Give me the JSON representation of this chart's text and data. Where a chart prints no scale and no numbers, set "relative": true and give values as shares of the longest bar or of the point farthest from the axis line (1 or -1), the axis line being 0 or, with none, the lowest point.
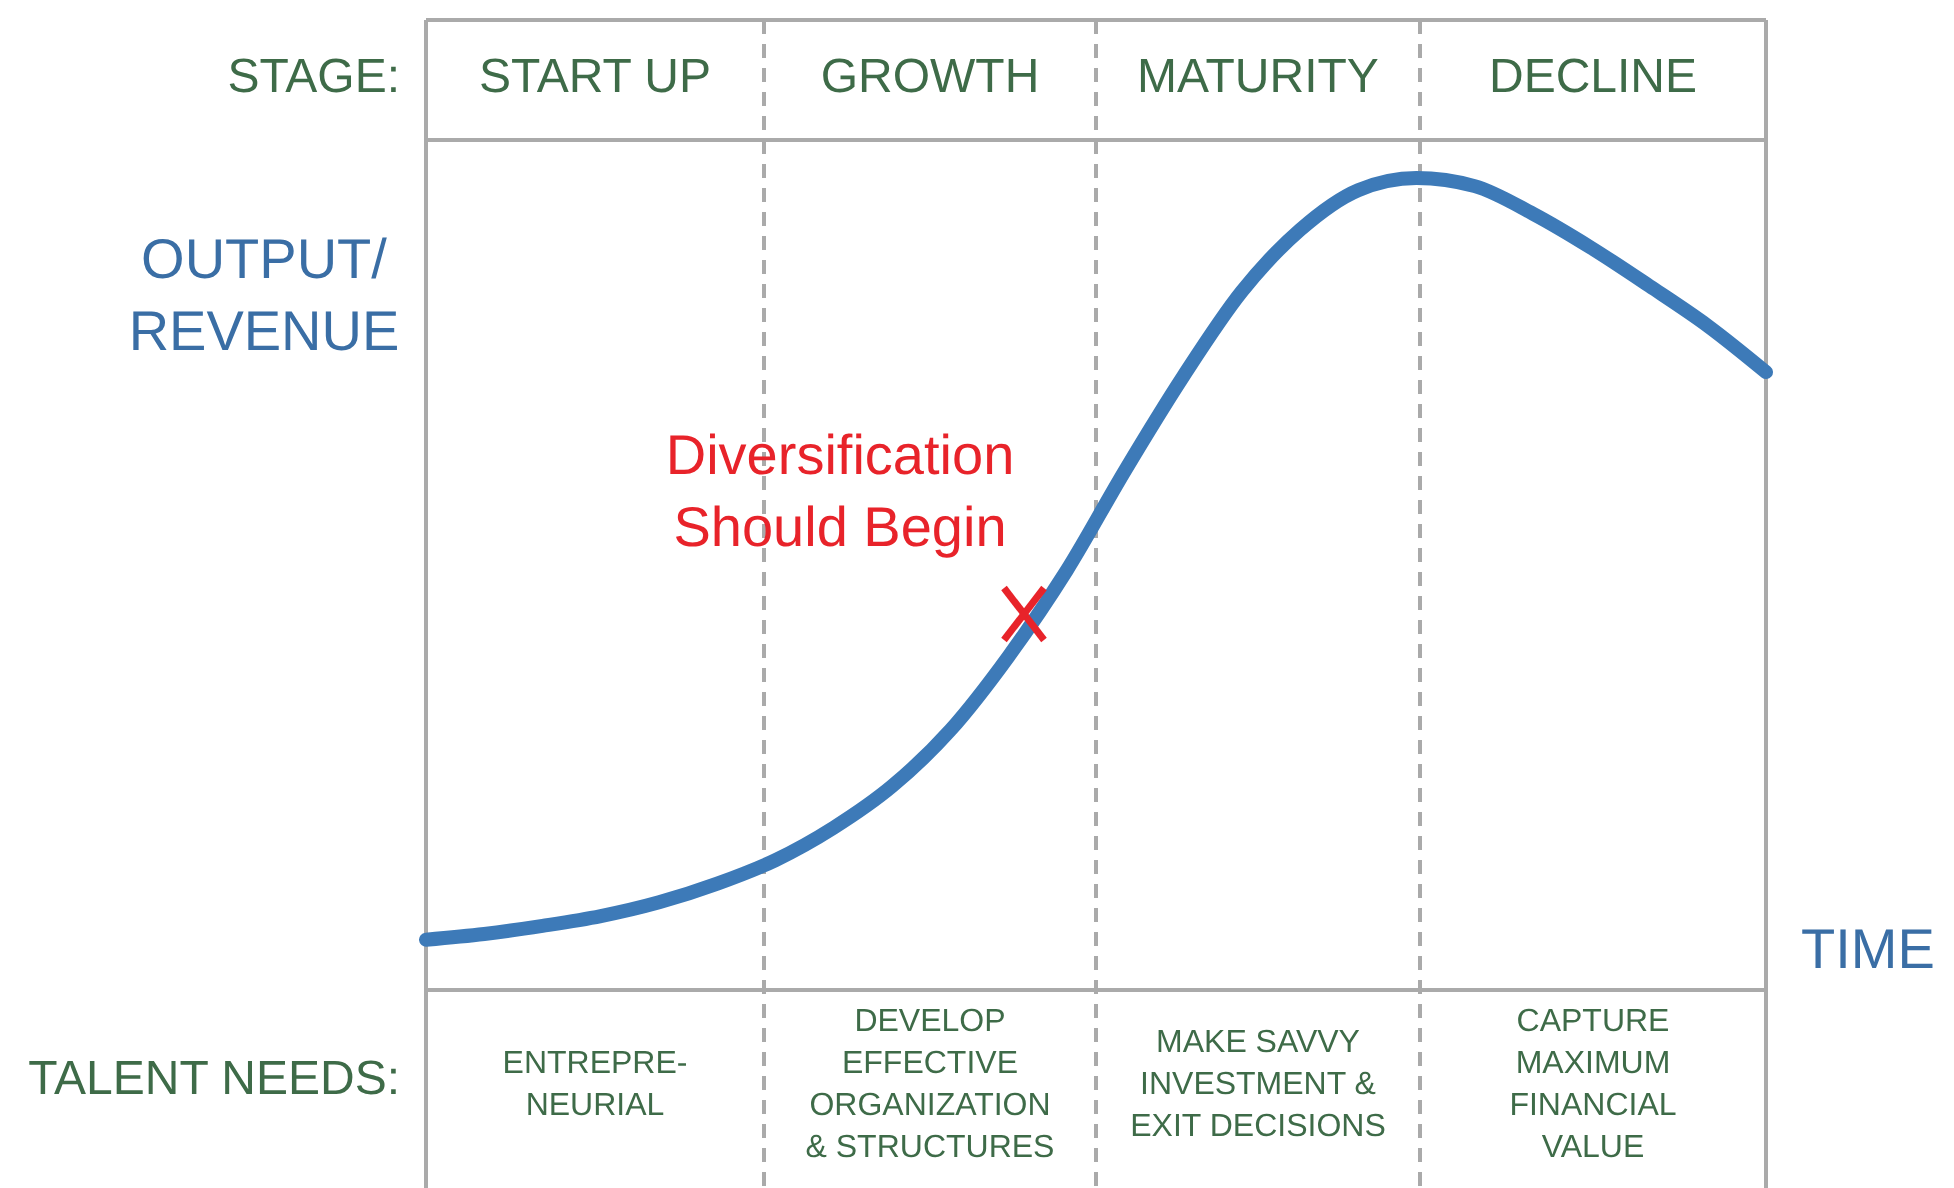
{
  "chart_data": {
    "type": "line",
    "relative": true,
    "xlabel": "TIME",
    "ylabel": "OUTPUT/\nREVENUE",
    "categories": [
      null,
      null,
      null,
      null,
      null,
      null,
      null,
      null,
      null,
      null,
      null,
      null,
      null,
      null,
      null,
      null,
      null,
      null,
      null,
      null,
      null,
      null,
      null,
      null
    ],
    "series": [
      {
        "color": "#3d7ab8",
        "values": [
          0.062,
          0.069,
          0.079,
          0.091,
          0.108,
          0.131,
          0.16,
          0.2,
          0.251,
          0.32,
          0.411,
          0.517,
          0.64,
          0.756,
          0.86,
          0.936,
          0.985,
          1,
          0.99,
          0.956,
          0.914,
          0.867,
          0.818,
          0.761
        ]
      }
    ],
    "annotations": [
      "STAGE:",
      "START UP",
      "GROWTH",
      "MATURITY",
      "DECLINE",
      "TALENT NEEDS:",
      "ENTREPRE-\nNEURIAL",
      "DEVELOP\nEFFECTIVE\nORGANIZATION\n& STRUCTURES",
      "MAKE SAVVY\nINVESTMENT &\nEXIT DECISIONS",
      "CAPTURE\nMAXIMUM\nFINANCIAL\nVALUE",
      "Diversification\nShould Begin"
    ],
    "line_style": "solid",
    "marker": "none",
    "grid": false
  }
}
